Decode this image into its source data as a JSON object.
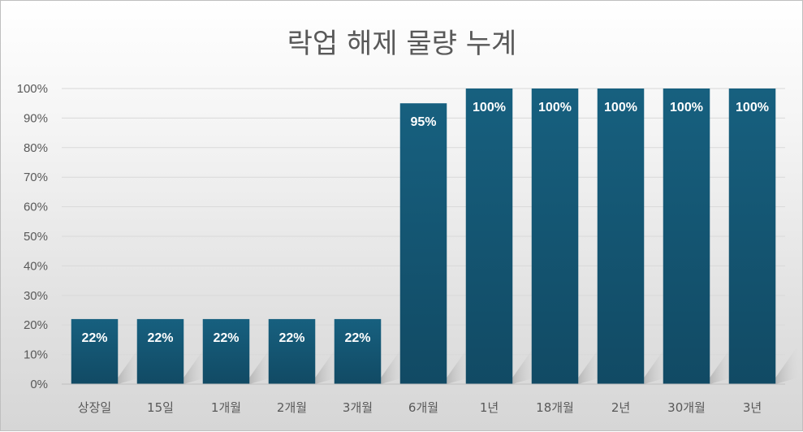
{
  "chart_data": {
    "type": "bar",
    "title": "락업 해제 물량 누계",
    "categories": [
      "상장일",
      "15일",
      "1개월",
      "2개월",
      "3개월",
      "6개월",
      "1년",
      "18개월",
      "2년",
      "30개월",
      "3년"
    ],
    "values": [
      22,
      22,
      22,
      22,
      22,
      95,
      100,
      100,
      100,
      100,
      100
    ],
    "value_labels": [
      "22%",
      "22%",
      "22%",
      "22%",
      "22%",
      "95%",
      "100%",
      "100%",
      "100%",
      "100%",
      "100%"
    ],
    "y_ticks": [
      0,
      10,
      20,
      30,
      40,
      50,
      60,
      70,
      80,
      90,
      100
    ],
    "y_tick_labels": [
      "0%",
      "10%",
      "20%",
      "30%",
      "40%",
      "50%",
      "60%",
      "70%",
      "80%",
      "90%",
      "100%"
    ],
    "ylim": [
      0,
      100
    ],
    "xlabel": "",
    "ylabel": "",
    "grid": true,
    "legend": "none",
    "colors": {
      "bar_top": "#17607f",
      "bar_bottom": "#114a64",
      "grid": "#d9d9d9",
      "axis": "#bfbfbf"
    }
  }
}
